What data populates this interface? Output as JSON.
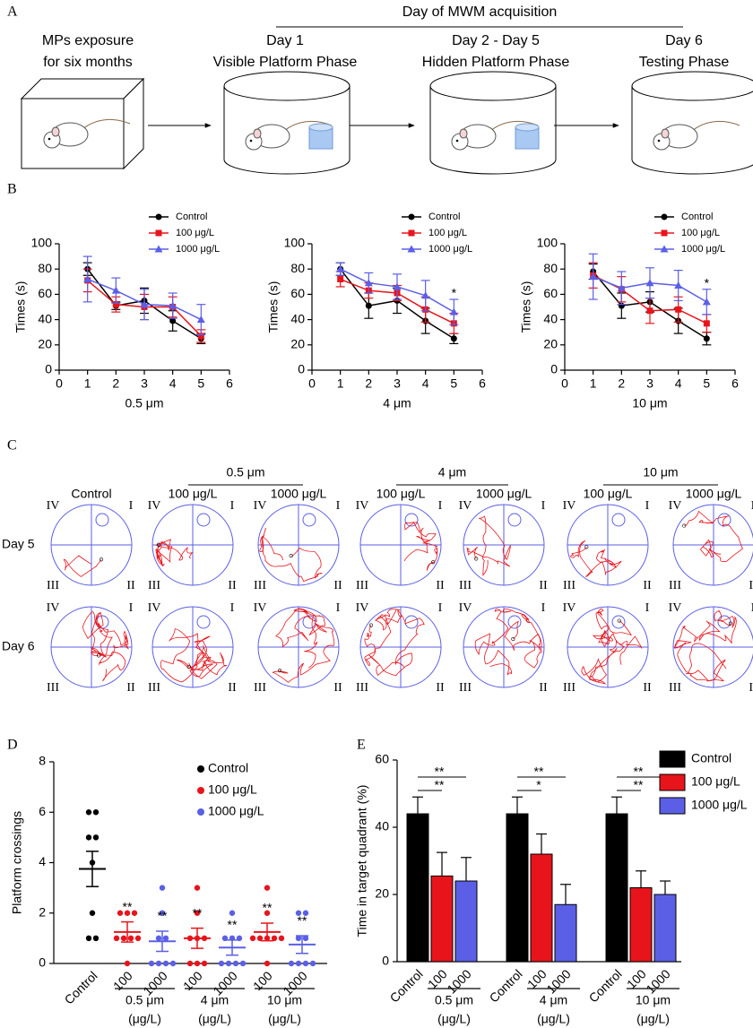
{
  "panel_a": {
    "label": "A",
    "header": "Day of MWM acquisition",
    "stages": [
      {
        "title": "MPs exposure",
        "subtitle": "for six months"
      },
      {
        "title": "Day 1",
        "subtitle": "Visible Platform Phase"
      },
      {
        "title": "Day 2 - Day 5",
        "subtitle": "Hidden Platform Phase"
      },
      {
        "title": "Day 6",
        "subtitle": "Testing Phase"
      }
    ]
  },
  "panel_b": {
    "label": "B"
  },
  "panel_c": {
    "label": "C",
    "control": "Control",
    "groups": [
      {
        "size": "0.5 μm",
        "doses": [
          "100 μg/L",
          "1000 μg/L"
        ]
      },
      {
        "size": "4 μm",
        "doses": [
          "100 μg/L",
          "1000 μg/L"
        ]
      },
      {
        "size": "10 μm",
        "doses": [
          "100 μg/L",
          "1000 μg/L"
        ]
      }
    ],
    "rows": [
      "Day 5",
      "Day 6"
    ],
    "quadrants": [
      "I",
      "II",
      "III",
      "IV"
    ]
  },
  "panel_d": {
    "label": "D"
  },
  "panel_e": {
    "label": "E"
  },
  "chart_data": [
    {
      "type": "line",
      "x_label": "0.5 μm",
      "y_label": "Times (s)",
      "x": [
        1,
        2,
        3,
        4,
        5
      ],
      "xlim": [
        0,
        6
      ],
      "xticks": [
        0,
        1,
        2,
        3,
        4,
        5,
        6
      ],
      "ylim": [
        0,
        100
      ],
      "yticks": [
        0,
        20,
        40,
        60,
        80,
        100
      ],
      "series": [
        {
          "name": "Control",
          "color": "#000000",
          "marker": "circle",
          "values": [
            80,
            51,
            55,
            39,
            25
          ],
          "errors": [
            5,
            3,
            10,
            8,
            4
          ]
        },
        {
          "name": "100 μg/L",
          "color": "#e8141c",
          "marker": "square",
          "values": [
            71,
            52,
            50,
            50,
            27
          ],
          "errors": [
            9,
            6,
            10,
            8,
            5
          ]
        },
        {
          "name": "1000 μg/L",
          "color": "#5b5fe6",
          "marker": "triangle",
          "values": [
            72,
            63,
            52,
            51,
            40
          ],
          "errors": [
            18,
            10,
            12,
            10,
            12
          ]
        }
      ],
      "annotations": []
    },
    {
      "type": "line",
      "x_label": "4 μm",
      "y_label": "Times (s)",
      "x": [
        1,
        2,
        3,
        4,
        5
      ],
      "xlim": [
        0,
        6
      ],
      "xticks": [
        0,
        1,
        2,
        3,
        4,
        5,
        6
      ],
      "ylim": [
        0,
        100
      ],
      "yticks": [
        0,
        20,
        40,
        60,
        80,
        100
      ],
      "series": [
        {
          "name": "Control",
          "color": "#000000",
          "marker": "circle",
          "values": [
            80,
            51,
            55,
            39,
            25
          ],
          "errors": [
            5,
            10,
            10,
            10,
            4
          ]
        },
        {
          "name": "100 μg/L",
          "color": "#e8141c",
          "marker": "square",
          "values": [
            72,
            63,
            61,
            48,
            37
          ],
          "errors": [
            6,
            6,
            6,
            10,
            8
          ]
        },
        {
          "name": "1000 μg/L",
          "color": "#5b5fe6",
          "marker": "triangle",
          "values": [
            80,
            69,
            66,
            59,
            46
          ],
          "errors": [
            5,
            8,
            10,
            12,
            10
          ]
        }
      ],
      "annotations": [
        {
          "x": 5,
          "text": "*",
          "color": "#5b5fe6"
        }
      ]
    },
    {
      "type": "line",
      "x_label": "10 μm",
      "y_label": "Times (s)",
      "x": [
        1,
        2,
        3,
        4,
        5
      ],
      "xlim": [
        0,
        6
      ],
      "xticks": [
        0,
        1,
        2,
        3,
        4,
        5,
        6
      ],
      "ylim": [
        0,
        100
      ],
      "yticks": [
        0,
        20,
        40,
        60,
        80,
        100
      ],
      "series": [
        {
          "name": "Control",
          "color": "#000000",
          "marker": "circle",
          "values": [
            78,
            51,
            54,
            39,
            25
          ],
          "errors": [
            6,
            10,
            8,
            10,
            5
          ]
        },
        {
          "name": "100 μg/L",
          "color": "#e8141c",
          "marker": "square",
          "values": [
            75,
            64,
            47,
            48,
            37
          ],
          "errors": [
            10,
            10,
            10,
            10,
            7
          ]
        },
        {
          "name": "1000 μg/L",
          "color": "#5b5fe6",
          "marker": "triangle",
          "values": [
            74,
            65,
            69,
            67,
            54
          ],
          "errors": [
            18,
            13,
            12,
            12,
            10
          ]
        }
      ],
      "annotations": [
        {
          "x": 5,
          "text": "*",
          "color": "#5b5fe6"
        }
      ]
    },
    {
      "type": "scatter",
      "y_label": "Platform crossings",
      "ylim": [
        0,
        8
      ],
      "yticks": [
        0,
        2,
        4,
        6,
        8
      ],
      "categories": [
        "Control",
        "100",
        "1000",
        "100",
        "1000",
        "100",
        "1000"
      ],
      "colors": [
        "#000000",
        "#e8141c",
        "#5b5fe6",
        "#e8141c",
        "#5b5fe6",
        "#e8141c",
        "#5b5fe6"
      ],
      "points": [
        [
          6,
          6,
          5,
          5,
          4,
          2,
          1,
          1
        ],
        [
          2,
          2,
          2,
          1,
          1,
          1,
          1,
          0
        ],
        [
          3,
          2,
          1,
          1,
          0,
          0,
          0,
          0
        ],
        [
          3,
          2,
          1,
          1,
          1,
          0,
          0,
          0
        ],
        [
          2,
          1,
          1,
          1,
          0,
          0,
          0,
          0
        ],
        [
          3,
          2,
          1,
          1,
          1,
          1,
          1,
          0
        ],
        [
          2,
          2,
          1,
          1,
          0,
          0,
          0,
          0
        ]
      ],
      "means": [
        3.75,
        1.25,
        0.88,
        1.0,
        0.63,
        1.25,
        0.75
      ],
      "errors": [
        0.7,
        0.4,
        0.4,
        0.4,
        0.3,
        0.35,
        0.35
      ],
      "significance": [
        null,
        "**",
        "**",
        "**",
        "**",
        "**",
        "**"
      ],
      "groups": [
        {
          "label": "0.5 μm",
          "unit": "(μg/L)"
        },
        {
          "label": "4 μm",
          "unit": "(μg/L)"
        },
        {
          "label": "10 μm",
          "unit": "(μg/L)"
        }
      ],
      "legend": [
        {
          "name": "Control",
          "color": "#000000"
        },
        {
          "name": "100 μg/L",
          "color": "#e8141c"
        },
        {
          "name": "1000 μg/L",
          "color": "#5b5fe6"
        }
      ]
    },
    {
      "type": "bar",
      "y_label": "Time in target quadrant (%)",
      "ylim": [
        0,
        60
      ],
      "yticks": [
        0,
        20,
        40,
        60
      ],
      "categories": [
        "Control",
        "100",
        "1000",
        "Control",
        "100",
        "1000",
        "Control",
        "100",
        "1000"
      ],
      "colors": [
        "#000000",
        "#e8141c",
        "#5b5fe6",
        "#000000",
        "#e8141c",
        "#5b5fe6",
        "#000000",
        "#e8141c",
        "#5b5fe6"
      ],
      "values": [
        44,
        25.5,
        24,
        44,
        32,
        17,
        44,
        22,
        20
      ],
      "errors": [
        5,
        7,
        7,
        5,
        6,
        6,
        5,
        5,
        4
      ],
      "brackets": [
        [
          "**",
          "**"
        ],
        [
          "*",
          "**"
        ],
        [
          "**",
          "**"
        ]
      ],
      "groups": [
        {
          "label": "0.5 μm",
          "unit": "(μg/L)"
        },
        {
          "label": "4 μm",
          "unit": "(μg/L)"
        },
        {
          "label": "10 μm",
          "unit": "(μg/L)"
        }
      ],
      "legend": [
        {
          "name": "Control",
          "color": "#000000"
        },
        {
          "name": "100 μg/L",
          "color": "#e8141c"
        },
        {
          "name": "1000 μg/L",
          "color": "#5b5fe6"
        }
      ]
    }
  ]
}
